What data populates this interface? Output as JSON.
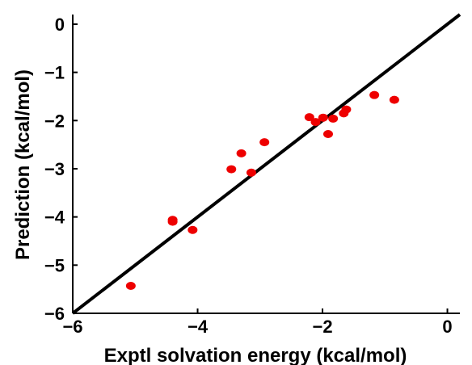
{
  "chart_data": {
    "type": "scatter",
    "xlabel": "Exptl solvation energy (kcal/mol)",
    "ylabel": "Prediction (kcal/mol)",
    "xlim": [
      -6,
      0.2
    ],
    "ylim": [
      -6,
      0.2
    ],
    "x_ticks": [
      -6,
      -4,
      -2,
      0
    ],
    "y_ticks": [
      0,
      -1,
      -2,
      -3,
      -4,
      -5,
      -6
    ],
    "x_tick_labels": [
      "−6",
      "−4",
      "−2",
      "0"
    ],
    "y_tick_labels": [
      "0",
      "−1",
      "−2",
      "−3",
      "−4",
      "−5",
      "−6"
    ],
    "grid": false,
    "reference_line": {
      "type": "y=x",
      "color": "#000000"
    },
    "marker_color": "#ee0000",
    "points": [
      {
        "x": -5.07,
        "y": -5.43
      },
      {
        "x": -4.4,
        "y": -4.06
      },
      {
        "x": -4.4,
        "y": -4.1
      },
      {
        "x": -4.08,
        "y": -4.27
      },
      {
        "x": -3.46,
        "y": -3.01
      },
      {
        "x": -3.3,
        "y": -2.68
      },
      {
        "x": -3.14,
        "y": -3.08
      },
      {
        "x": -2.93,
        "y": -2.45
      },
      {
        "x": -2.21,
        "y": -1.93
      },
      {
        "x": -2.11,
        "y": -2.03
      },
      {
        "x": -1.99,
        "y": -1.94
      },
      {
        "x": -1.91,
        "y": -2.28
      },
      {
        "x": -1.83,
        "y": -1.96
      },
      {
        "x": -1.66,
        "y": -1.85
      },
      {
        "x": -1.62,
        "y": -1.77
      },
      {
        "x": -1.17,
        "y": -1.47
      },
      {
        "x": -0.85,
        "y": -1.57
      }
    ]
  }
}
